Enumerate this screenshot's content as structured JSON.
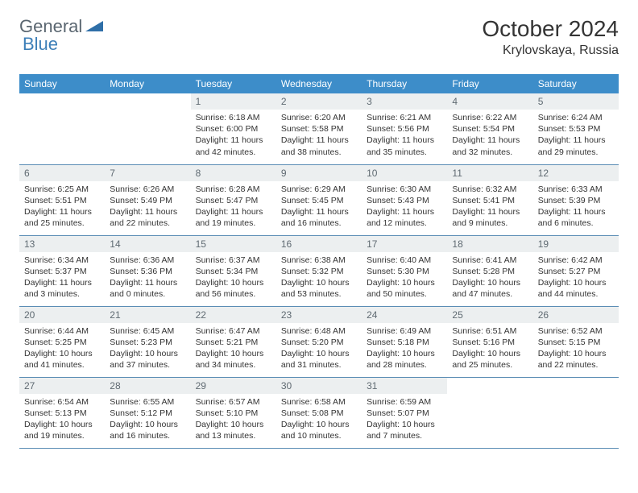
{
  "logo": {
    "part1": "General",
    "part2": "Blue"
  },
  "title": "October 2024",
  "location": "Krylovskaya, Russia",
  "colors": {
    "header_bg": "#3d8dc9",
    "header_text": "#ffffff",
    "daynum_bg": "#eceff0",
    "daynum_text": "#5f6a72",
    "body_text": "#343434",
    "border": "#5b8db5",
    "logo_gray": "#5a6670",
    "logo_blue": "#3d7fb8"
  },
  "day_headers": [
    "Sunday",
    "Monday",
    "Tuesday",
    "Wednesday",
    "Thursday",
    "Friday",
    "Saturday"
  ],
  "weeks": [
    [
      {
        "empty": true
      },
      {
        "empty": true
      },
      {
        "num": "1",
        "sunrise": "6:18 AM",
        "sunset": "6:00 PM",
        "daylight": "11 hours and 42 minutes."
      },
      {
        "num": "2",
        "sunrise": "6:20 AM",
        "sunset": "5:58 PM",
        "daylight": "11 hours and 38 minutes."
      },
      {
        "num": "3",
        "sunrise": "6:21 AM",
        "sunset": "5:56 PM",
        "daylight": "11 hours and 35 minutes."
      },
      {
        "num": "4",
        "sunrise": "6:22 AM",
        "sunset": "5:54 PM",
        "daylight": "11 hours and 32 minutes."
      },
      {
        "num": "5",
        "sunrise": "6:24 AM",
        "sunset": "5:53 PM",
        "daylight": "11 hours and 29 minutes."
      }
    ],
    [
      {
        "num": "6",
        "sunrise": "6:25 AM",
        "sunset": "5:51 PM",
        "daylight": "11 hours and 25 minutes."
      },
      {
        "num": "7",
        "sunrise": "6:26 AM",
        "sunset": "5:49 PM",
        "daylight": "11 hours and 22 minutes."
      },
      {
        "num": "8",
        "sunrise": "6:28 AM",
        "sunset": "5:47 PM",
        "daylight": "11 hours and 19 minutes."
      },
      {
        "num": "9",
        "sunrise": "6:29 AM",
        "sunset": "5:45 PM",
        "daylight": "11 hours and 16 minutes."
      },
      {
        "num": "10",
        "sunrise": "6:30 AM",
        "sunset": "5:43 PM",
        "daylight": "11 hours and 12 minutes."
      },
      {
        "num": "11",
        "sunrise": "6:32 AM",
        "sunset": "5:41 PM",
        "daylight": "11 hours and 9 minutes."
      },
      {
        "num": "12",
        "sunrise": "6:33 AM",
        "sunset": "5:39 PM",
        "daylight": "11 hours and 6 minutes."
      }
    ],
    [
      {
        "num": "13",
        "sunrise": "6:34 AM",
        "sunset": "5:37 PM",
        "daylight": "11 hours and 3 minutes."
      },
      {
        "num": "14",
        "sunrise": "6:36 AM",
        "sunset": "5:36 PM",
        "daylight": "11 hours and 0 minutes."
      },
      {
        "num": "15",
        "sunrise": "6:37 AM",
        "sunset": "5:34 PM",
        "daylight": "10 hours and 56 minutes."
      },
      {
        "num": "16",
        "sunrise": "6:38 AM",
        "sunset": "5:32 PM",
        "daylight": "10 hours and 53 minutes."
      },
      {
        "num": "17",
        "sunrise": "6:40 AM",
        "sunset": "5:30 PM",
        "daylight": "10 hours and 50 minutes."
      },
      {
        "num": "18",
        "sunrise": "6:41 AM",
        "sunset": "5:28 PM",
        "daylight": "10 hours and 47 minutes."
      },
      {
        "num": "19",
        "sunrise": "6:42 AM",
        "sunset": "5:27 PM",
        "daylight": "10 hours and 44 minutes."
      }
    ],
    [
      {
        "num": "20",
        "sunrise": "6:44 AM",
        "sunset": "5:25 PM",
        "daylight": "10 hours and 41 minutes."
      },
      {
        "num": "21",
        "sunrise": "6:45 AM",
        "sunset": "5:23 PM",
        "daylight": "10 hours and 37 minutes."
      },
      {
        "num": "22",
        "sunrise": "6:47 AM",
        "sunset": "5:21 PM",
        "daylight": "10 hours and 34 minutes."
      },
      {
        "num": "23",
        "sunrise": "6:48 AM",
        "sunset": "5:20 PM",
        "daylight": "10 hours and 31 minutes."
      },
      {
        "num": "24",
        "sunrise": "6:49 AM",
        "sunset": "5:18 PM",
        "daylight": "10 hours and 28 minutes."
      },
      {
        "num": "25",
        "sunrise": "6:51 AM",
        "sunset": "5:16 PM",
        "daylight": "10 hours and 25 minutes."
      },
      {
        "num": "26",
        "sunrise": "6:52 AM",
        "sunset": "5:15 PM",
        "daylight": "10 hours and 22 minutes."
      }
    ],
    [
      {
        "num": "27",
        "sunrise": "6:54 AM",
        "sunset": "5:13 PM",
        "daylight": "10 hours and 19 minutes."
      },
      {
        "num": "28",
        "sunrise": "6:55 AM",
        "sunset": "5:12 PM",
        "daylight": "10 hours and 16 minutes."
      },
      {
        "num": "29",
        "sunrise": "6:57 AM",
        "sunset": "5:10 PM",
        "daylight": "10 hours and 13 minutes."
      },
      {
        "num": "30",
        "sunrise": "6:58 AM",
        "sunset": "5:08 PM",
        "daylight": "10 hours and 10 minutes."
      },
      {
        "num": "31",
        "sunrise": "6:59 AM",
        "sunset": "5:07 PM",
        "daylight": "10 hours and 7 minutes."
      },
      {
        "empty": true
      },
      {
        "empty": true
      }
    ]
  ]
}
